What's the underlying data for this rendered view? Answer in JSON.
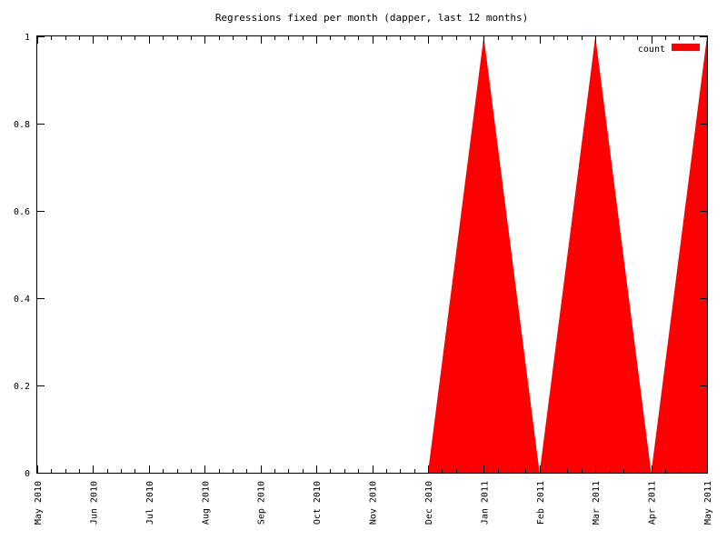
{
  "chart_data": {
    "type": "area",
    "title": "Regressions fixed per month (dapper, last 12 months)",
    "xlabel": "",
    "ylabel": "",
    "x": [
      "May 2010",
      "Jun 2010",
      "Jul 2010",
      "Aug 2010",
      "Sep 2010",
      "Oct 2010",
      "Nov 2010",
      "Dec 2010",
      "Jan 2011",
      "Feb 2011",
      "Mar 2011",
      "Apr 2011",
      "May 2011"
    ],
    "series": [
      {
        "name": "count",
        "color": "#ff0000",
        "values": [
          0,
          0,
          0,
          0,
          0,
          0,
          0,
          0,
          1,
          0,
          1,
          0,
          1
        ]
      }
    ],
    "ylim": [
      0,
      1
    ],
    "yticks": [
      0,
      0.2,
      0.4,
      0.6,
      0.8,
      1
    ],
    "ytick_labels": [
      "0",
      "0.2",
      "0.4",
      "0.6",
      "0.8",
      "1"
    ],
    "grid": false,
    "legend_position": "top-right"
  }
}
